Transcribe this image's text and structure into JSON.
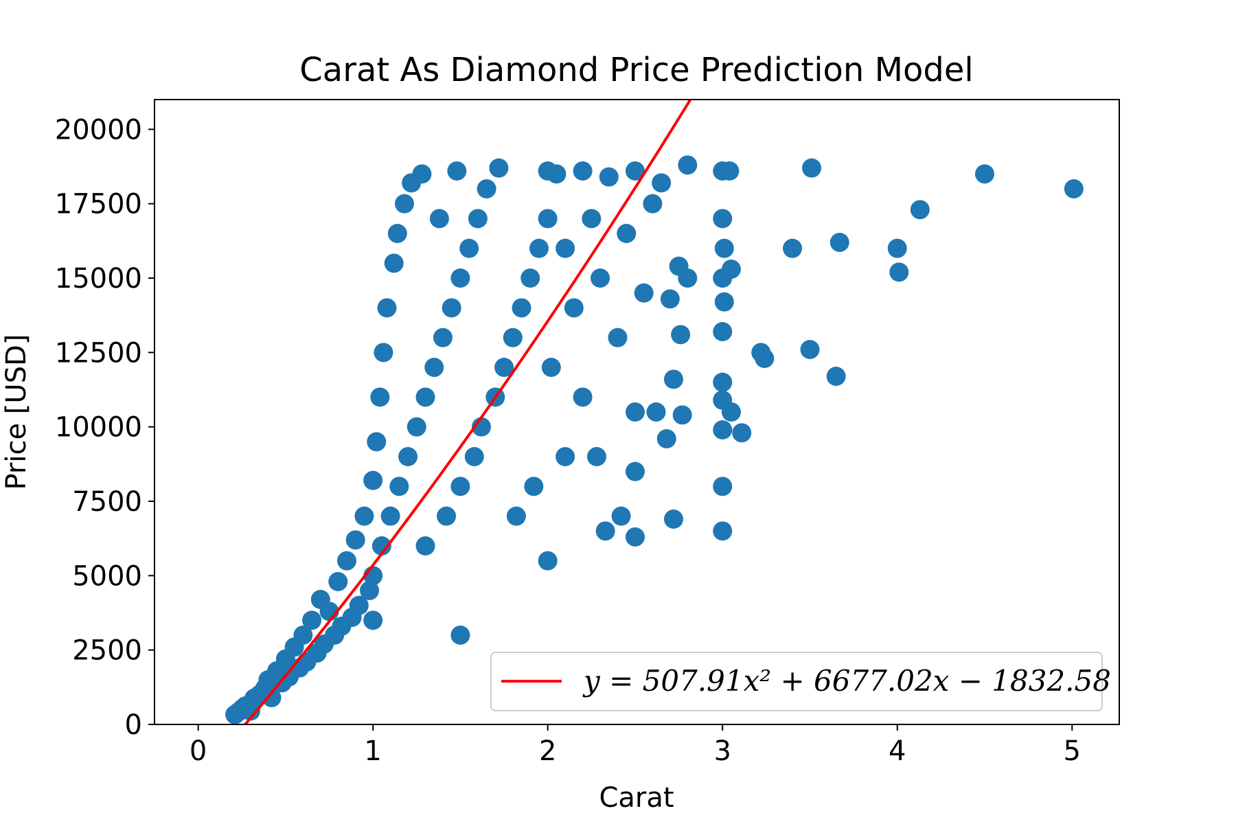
{
  "chart_data": {
    "type": "scatter",
    "title": "Carat As Diamond Price Prediction Model",
    "xlabel": "Carat",
    "ylabel": "Price [USD]",
    "xlim": [
      -0.25,
      5.27
    ],
    "ylim": [
      0,
      21000
    ],
    "xticks": [
      "0",
      "1",
      "2",
      "3",
      "4",
      "5"
    ],
    "yticks": [
      "0",
      "2500",
      "5000",
      "7500",
      "10000",
      "12500",
      "15000",
      "17500",
      "20000"
    ],
    "grid": false,
    "legend_position": "lower-right",
    "colors": {
      "points": "#1f77b4",
      "fit": "#ff0000",
      "frame": "#000000"
    },
    "series": [
      {
        "type": "scatter",
        "points": [
          [
            0.21,
            330
          ],
          [
            0.23,
            420
          ],
          [
            0.25,
            520
          ],
          [
            0.27,
            620
          ],
          [
            0.3,
            700
          ],
          [
            0.3,
            450
          ],
          [
            0.32,
            880
          ],
          [
            0.35,
            1000
          ],
          [
            0.38,
            1200
          ],
          [
            0.4,
            1500
          ],
          [
            0.42,
            900
          ],
          [
            0.45,
            1800
          ],
          [
            0.48,
            1400
          ],
          [
            0.5,
            2200
          ],
          [
            0.52,
            1600
          ],
          [
            0.55,
            2600
          ],
          [
            0.58,
            1900
          ],
          [
            0.6,
            3000
          ],
          [
            0.62,
            2100
          ],
          [
            0.65,
            3500
          ],
          [
            0.68,
            2400
          ],
          [
            0.7,
            4200
          ],
          [
            0.72,
            2700
          ],
          [
            0.75,
            3800
          ],
          [
            0.78,
            3000
          ],
          [
            0.8,
            4800
          ],
          [
            0.82,
            3300
          ],
          [
            0.85,
            5500
          ],
          [
            0.88,
            3600
          ],
          [
            0.9,
            6200
          ],
          [
            0.92,
            4000
          ],
          [
            0.95,
            7000
          ],
          [
            0.98,
            4500
          ],
          [
            1.0,
            8200
          ],
          [
            1.0,
            5000
          ],
          [
            1.0,
            3500
          ],
          [
            1.02,
            9500
          ],
          [
            1.04,
            11000
          ],
          [
            1.05,
            6000
          ],
          [
            1.06,
            12500
          ],
          [
            1.08,
            14000
          ],
          [
            1.1,
            7000
          ],
          [
            1.12,
            15500
          ],
          [
            1.14,
            16500
          ],
          [
            1.15,
            8000
          ],
          [
            1.18,
            17500
          ],
          [
            1.2,
            9000
          ],
          [
            1.22,
            18200
          ],
          [
            1.25,
            10000
          ],
          [
            1.28,
            18500
          ],
          [
            1.3,
            11000
          ],
          [
            1.3,
            6000
          ],
          [
            1.35,
            12000
          ],
          [
            1.38,
            17000
          ],
          [
            1.4,
            13000
          ],
          [
            1.42,
            7000
          ],
          [
            1.45,
            14000
          ],
          [
            1.48,
            18600
          ],
          [
            1.5,
            15000
          ],
          [
            1.5,
            8000
          ],
          [
            1.5,
            3000
          ],
          [
            1.55,
            16000
          ],
          [
            1.58,
            9000
          ],
          [
            1.6,
            17000
          ],
          [
            1.62,
            10000
          ],
          [
            1.65,
            18000
          ],
          [
            1.7,
            11000
          ],
          [
            1.72,
            18700
          ],
          [
            1.75,
            12000
          ],
          [
            1.8,
            13000
          ],
          [
            1.82,
            7000
          ],
          [
            1.85,
            14000
          ],
          [
            1.9,
            15000
          ],
          [
            1.92,
            8000
          ],
          [
            1.95,
            16000
          ],
          [
            2.0,
            17000
          ],
          [
            2.0,
            18600
          ],
          [
            2.0,
            5500
          ],
          [
            2.02,
            12000
          ],
          [
            2.05,
            18500
          ],
          [
            2.1,
            16000
          ],
          [
            2.1,
            9000
          ],
          [
            2.15,
            14000
          ],
          [
            2.2,
            18600
          ],
          [
            2.2,
            11000
          ],
          [
            2.25,
            17000
          ],
          [
            2.28,
            9000
          ],
          [
            2.3,
            15000
          ],
          [
            2.33,
            6500
          ],
          [
            2.35,
            18400
          ],
          [
            2.4,
            13000
          ],
          [
            2.42,
            7000
          ],
          [
            2.45,
            16500
          ],
          [
            2.5,
            18600
          ],
          [
            2.5,
            10500
          ],
          [
            2.5,
            8500
          ],
          [
            2.5,
            6300
          ],
          [
            2.55,
            14500
          ],
          [
            2.6,
            17500
          ],
          [
            2.62,
            10500
          ],
          [
            2.65,
            18200
          ],
          [
            2.68,
            9600
          ],
          [
            2.7,
            14300
          ],
          [
            2.72,
            11600
          ],
          [
            2.72,
            6900
          ],
          [
            2.75,
            15400
          ],
          [
            2.76,
            13100
          ],
          [
            2.77,
            10400
          ],
          [
            2.8,
            18800
          ],
          [
            2.8,
            15000
          ],
          [
            3.0,
            18600
          ],
          [
            3.0,
            17000
          ],
          [
            3.0,
            15000
          ],
          [
            3.0,
            13200
          ],
          [
            3.0,
            11500
          ],
          [
            3.0,
            10900
          ],
          [
            3.0,
            9900
          ],
          [
            3.0,
            8000
          ],
          [
            3.0,
            6500
          ],
          [
            3.01,
            16000
          ],
          [
            3.01,
            14200
          ],
          [
            3.04,
            18600
          ],
          [
            3.05,
            15300
          ],
          [
            3.05,
            10500
          ],
          [
            3.11,
            9800
          ],
          [
            3.22,
            12500
          ],
          [
            3.24,
            12300
          ],
          [
            3.4,
            16000
          ],
          [
            3.5,
            12600
          ],
          [
            3.51,
            18700
          ],
          [
            3.65,
            11700
          ],
          [
            3.67,
            16200
          ],
          [
            4.0,
            16000
          ],
          [
            4.01,
            15200
          ],
          [
            4.13,
            17300
          ],
          [
            4.5,
            18500
          ],
          [
            5.01,
            18000
          ]
        ]
      },
      {
        "name": "y = 507.91x² + 6677.02x − 1832.58",
        "type": "line",
        "coefficients": [
          507.91,
          6677.02,
          -1832.58
        ]
      }
    ],
    "legend": {
      "label": "y = 507.91x² + 6677.02x − 1832.58"
    }
  }
}
